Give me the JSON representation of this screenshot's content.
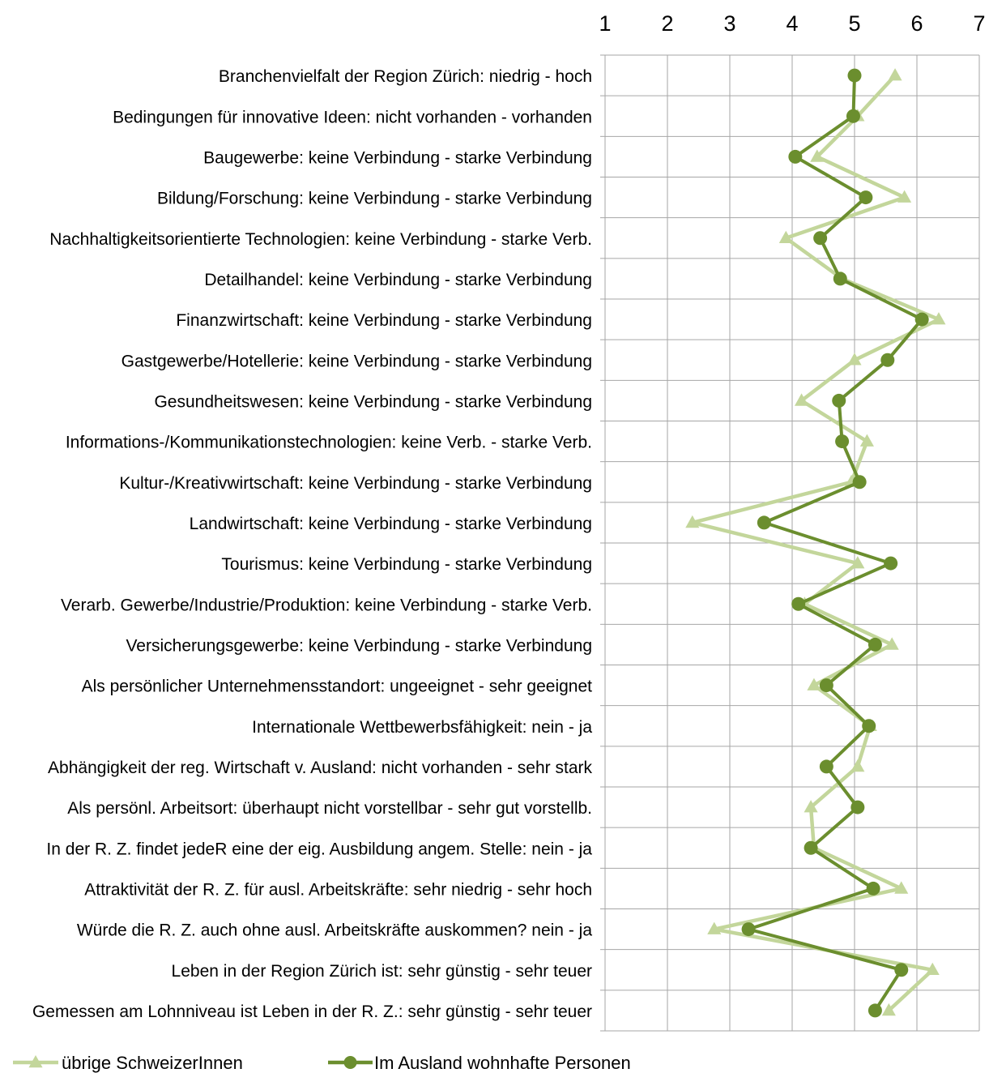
{
  "chart_data": {
    "type": "line",
    "orientation": "horizontal-profile",
    "title": "",
    "xlabel": "",
    "ylabel": "",
    "xlim": [
      1,
      7
    ],
    "x_ticks": [
      "1",
      "2",
      "3",
      "4",
      "5",
      "6",
      "7"
    ],
    "x_axis_position": "top",
    "grid": true,
    "legend_position": "bottom",
    "categories": [
      "Branchenvielfalt der Region Zürich: niedrig - hoch",
      "Bedingungen für innovative Ideen: nicht vorhanden - vorhanden",
      "Baugewerbe: keine Verbindung - starke Verbindung",
      "Bildung/Forschung: keine Verbindung - starke Verbindung",
      "Nachhaltigkeitsorientierte Technologien: keine Verbindung - starke Verb.",
      "Detailhandel: keine Verbindung - starke Verbindung",
      "Finanzwirtschaft:  keine Verbindung - starke Verbindung",
      "Gastgewerbe/Hotellerie: keine Verbindung - starke Verbindung",
      "Gesundheitswesen: keine Verbindung - starke Verbindung",
      "Informations-/Kommunikationstechnologien: keine Verb. - starke Verb.",
      "Kultur-/Kreativwirtschaft: keine Verbindung - starke Verbindung",
      "Landwirtschaft: keine Verbindung - starke Verbindung",
      "Tourismus: keine Verbindung - starke Verbindung",
      "Verarb. Gewerbe/Industrie/Produktion: keine Verbindung - starke Verb.",
      "Versicherungsgewerbe: keine Verbindung - starke Verbindung",
      "Als persönlicher Unternehmensstandort: ungeeignet - sehr geeignet",
      "Internationale Wettbewerbsfähigkeit: nein - ja",
      "Abhängigkeit der reg. Wirtschaft v. Ausland: nicht vorhanden - sehr stark",
      "Als persönl. Arbeitsort: überhaupt nicht vorstellbar - sehr gut vorstellb.",
      "In der R. Z. findet jedeR eine der eig. Ausbildung angem. Stelle: nein - ja",
      "Attraktivität der R. Z. für ausl. Arbeitskräfte: sehr niedrig - sehr hoch",
      "Würde die R. Z. auch ohne ausl. Arbeitskräfte auskommen? nein - ja",
      "Leben in der Region Zürich ist: sehr günstig - sehr teuer",
      "Gemessen am Lohnniveau ist Leben in der R. Z.: sehr günstig - sehr teuer"
    ],
    "series": [
      {
        "name": "übrige SchweizerInnen",
        "marker": "triangle",
        "color": "#c3d69b",
        "values": [
          5.65,
          5.05,
          4.4,
          5.8,
          3.9,
          4.8,
          6.35,
          5.0,
          4.15,
          5.2,
          4.95,
          2.4,
          5.05,
          4.2,
          5.6,
          4.35,
          5.25,
          5.05,
          4.3,
          4.35,
          5.75,
          2.75,
          6.25,
          5.55
        ]
      },
      {
        "name": "Im Ausland wohnhafte Personen",
        "marker": "circle",
        "color": "#6b8e2e",
        "values": [
          5.0,
          4.98,
          4.05,
          5.18,
          4.45,
          4.77,
          6.08,
          5.53,
          4.75,
          4.8,
          5.08,
          3.55,
          5.58,
          4.1,
          5.33,
          4.55,
          5.23,
          4.55,
          5.05,
          4.3,
          5.3,
          3.3,
          5.75,
          5.33
        ]
      }
    ]
  }
}
